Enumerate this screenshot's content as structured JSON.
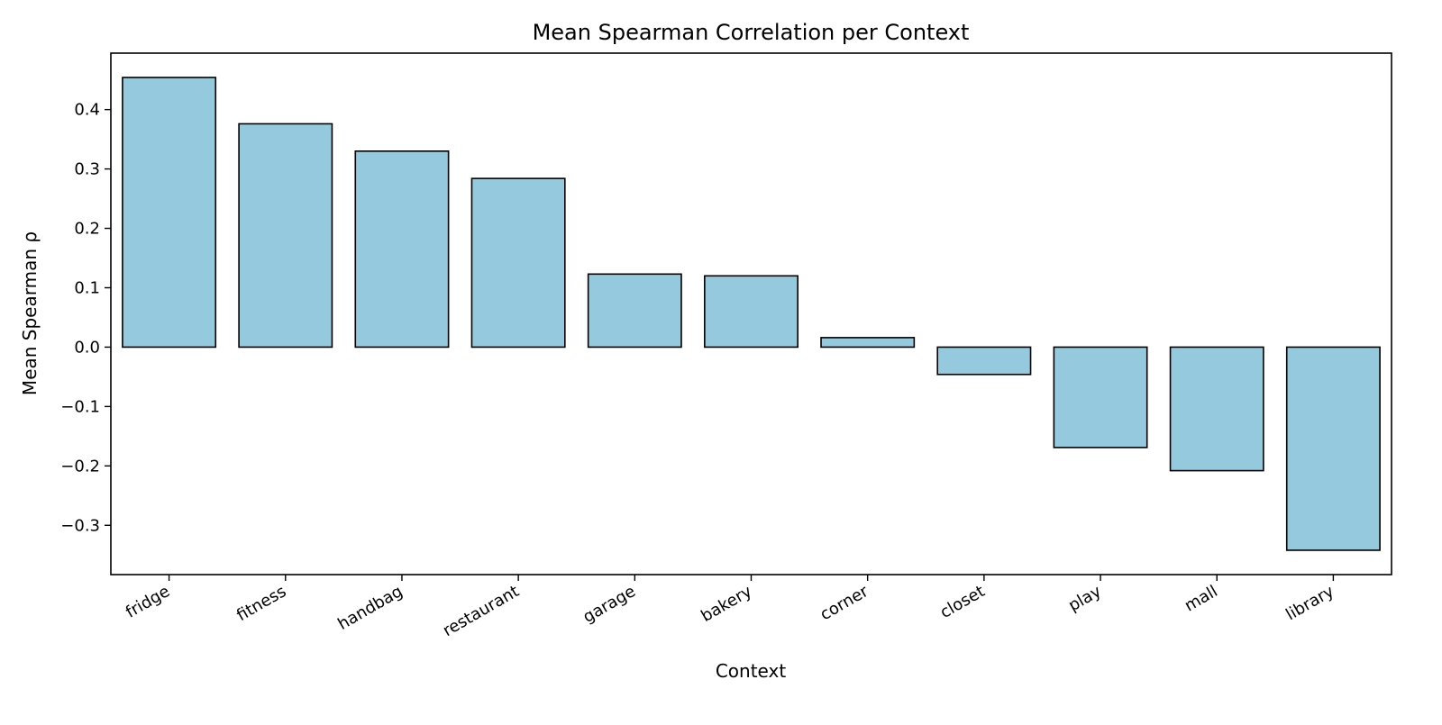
{
  "chart_data": {
    "type": "bar",
    "title": "Mean Spearman Correlation per Context",
    "xlabel": "Context",
    "ylabel": "Mean Spearman ρ",
    "categories": [
      "fridge",
      "fitness",
      "handbag",
      "restaurant",
      "garage",
      "bakery",
      "corner",
      "closet",
      "play",
      "mall",
      "library"
    ],
    "values": [
      0.454,
      0.376,
      0.33,
      0.284,
      0.123,
      0.12,
      0.016,
      -0.046,
      -0.169,
      -0.208,
      -0.342
    ],
    "ylim": [
      -0.383,
      0.495
    ],
    "yticks": [
      0.4,
      0.3,
      0.2,
      0.1,
      0.0,
      -0.1,
      -0.2,
      -0.3
    ],
    "ytick_labels": [
      "0.4",
      "0.3",
      "0.2",
      "0.1",
      "0.0",
      "−0.1",
      "−0.2",
      "−0.3"
    ],
    "grid": false,
    "bar_color": "#95c9de",
    "edge_color": "#000000"
  }
}
